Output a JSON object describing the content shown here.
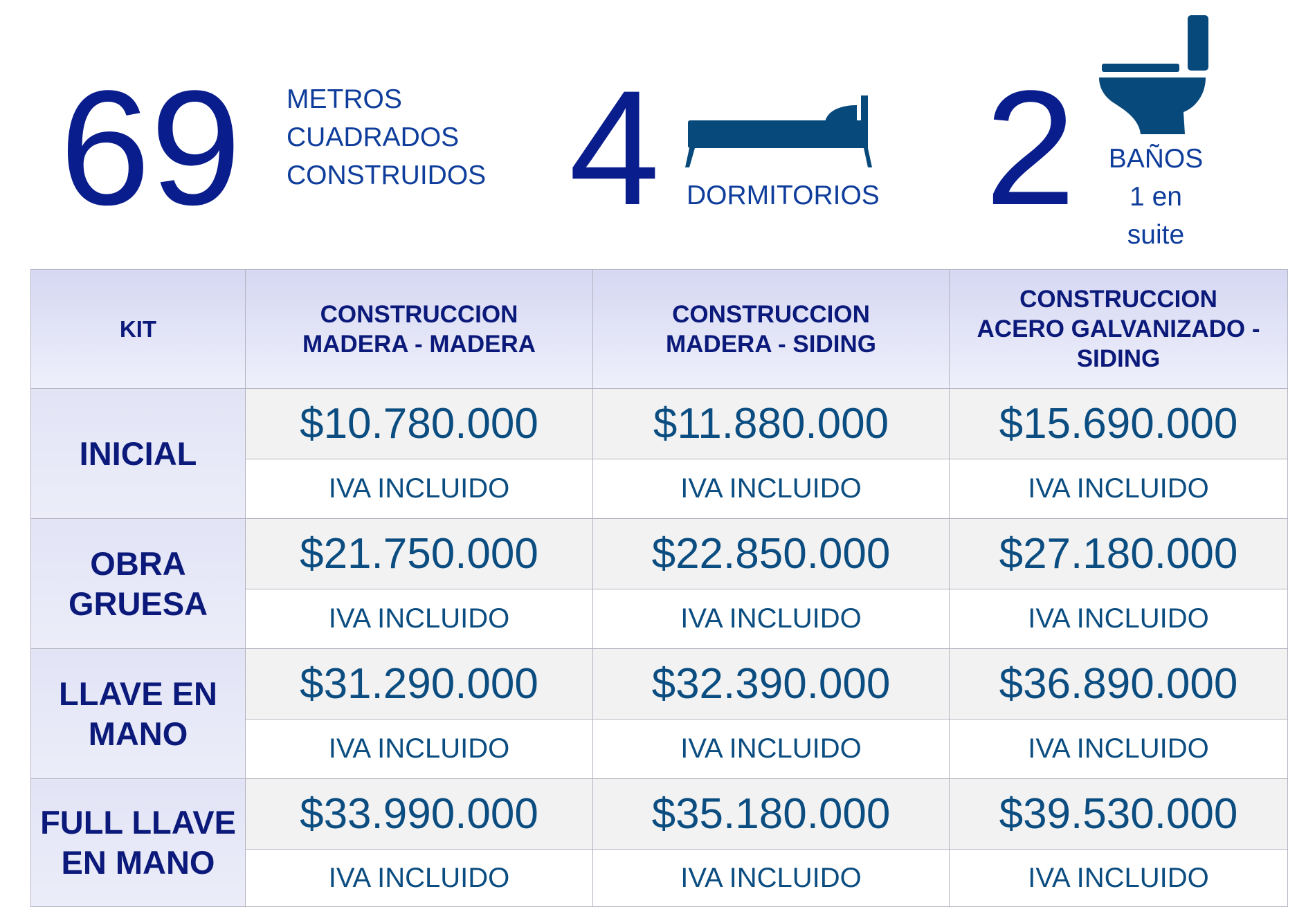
{
  "stats": {
    "area": {
      "number": "69",
      "label_lines": [
        "METROS",
        "CUADRADOS",
        "CONSTRUIDOS"
      ]
    },
    "bedrooms": {
      "number": "4",
      "label": "DORMITORIOS",
      "icon": "bed-icon"
    },
    "bathrooms": {
      "number": "2",
      "label_lines": [
        "BAÑOS",
        "1 en",
        "suite"
      ],
      "icon": "toilet-icon"
    }
  },
  "table": {
    "headers": [
      [
        "KIT"
      ],
      [
        "CONSTRUCCION",
        "MADERA - MADERA"
      ],
      [
        "CONSTRUCCION",
        "MADERA - SIDING"
      ],
      [
        "CONSTRUCCION",
        "ACERO GALVANIZADO -",
        "SIDING"
      ]
    ],
    "rows": [
      {
        "kit": [
          "INICIAL"
        ],
        "prices": [
          "$10.780.000",
          "$11.880.000",
          "$15.690.000"
        ],
        "note": "IVA INCLUIDO"
      },
      {
        "kit": [
          "OBRA",
          "GRUESA"
        ],
        "prices": [
          "$21.750.000",
          "$22.850.000",
          "$27.180.000"
        ],
        "note": "IVA INCLUIDO"
      },
      {
        "kit": [
          "LLAVE EN",
          "MANO"
        ],
        "prices": [
          "$31.290.000",
          "$32.390.000",
          "$36.890.000"
        ],
        "note": "IVA INCLUIDO"
      },
      {
        "kit": [
          "FULL LLAVE",
          "EN MANO"
        ],
        "prices": [
          "$33.990.000",
          "$35.180.000",
          "$39.530.000"
        ],
        "note": "IVA INCLUIDO"
      }
    ]
  },
  "colors": {
    "number": "#0a1d8c",
    "label": "#0f3d9b",
    "icon": "#07497b",
    "price_text": "#0b4d80",
    "header_text": "#0b1a7a"
  }
}
